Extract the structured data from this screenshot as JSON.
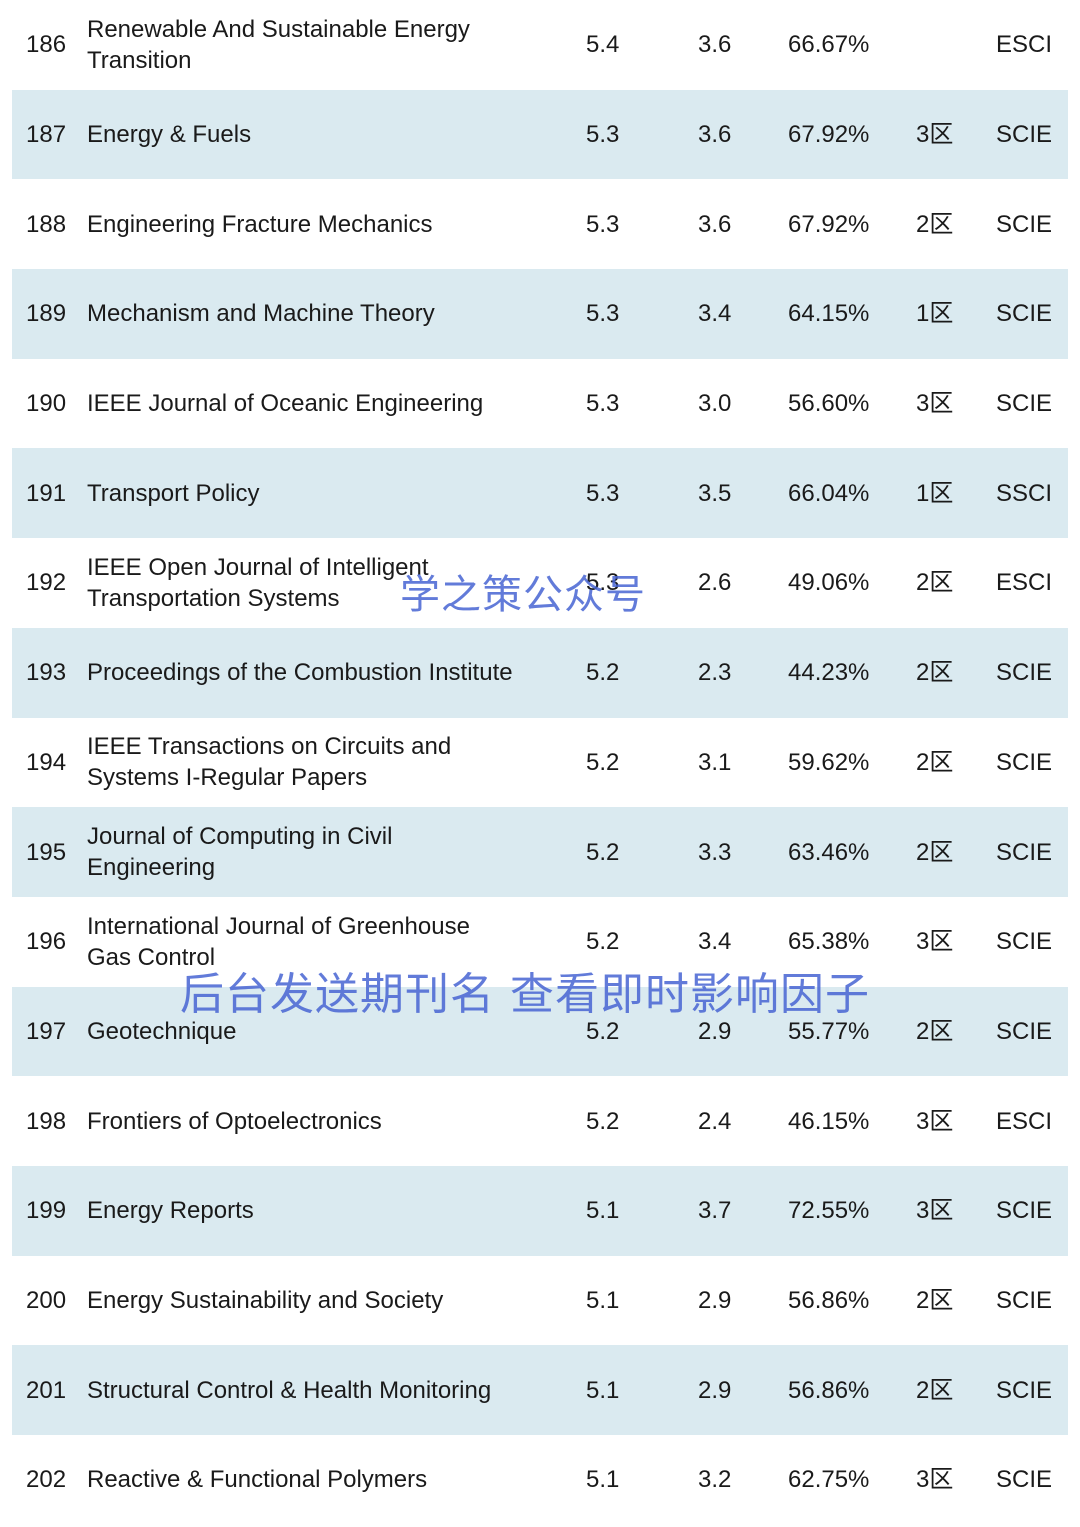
{
  "rows": [
    {
      "rank": "186",
      "title": [
        "Renewable And Sustainable Energy",
        "Transition"
      ],
      "if": "5.4",
      "cite": "3.6",
      "pct": "66.67%",
      "zone": "",
      "index": "ESCI"
    },
    {
      "rank": "187",
      "title": [
        "Energy & Fuels"
      ],
      "if": "5.3",
      "cite": "3.6",
      "pct": "67.92%",
      "zone": "3区",
      "index": "SCIE"
    },
    {
      "rank": "188",
      "title": [
        "Engineering Fracture Mechanics"
      ],
      "if": "5.3",
      "cite": "3.6",
      "pct": "67.92%",
      "zone": "2区",
      "index": "SCIE"
    },
    {
      "rank": "189",
      "title": [
        "Mechanism and Machine Theory"
      ],
      "if": "5.3",
      "cite": "3.4",
      "pct": "64.15%",
      "zone": "1区",
      "index": "SCIE"
    },
    {
      "rank": "190",
      "title": [
        "IEEE Journal of Oceanic Engineering"
      ],
      "if": "5.3",
      "cite": "3.0",
      "pct": "56.60%",
      "zone": "3区",
      "index": "SCIE"
    },
    {
      "rank": "191",
      "title": [
        "Transport Policy"
      ],
      "if": "5.3",
      "cite": "3.5",
      "pct": "66.04%",
      "zone": "1区",
      "index": "SSCI"
    },
    {
      "rank": "192",
      "title": [
        "IEEE Open Journal of Intelligent",
        "Transportation Systems"
      ],
      "if": "5.3",
      "cite": "2.6",
      "pct": "49.06%",
      "zone": "2区",
      "index": "ESCI"
    },
    {
      "rank": "193",
      "title": [
        "Proceedings of the Combustion Institute"
      ],
      "if": "5.2",
      "cite": "2.3",
      "pct": "44.23%",
      "zone": "2区",
      "index": "SCIE"
    },
    {
      "rank": "194",
      "title": [
        "IEEE Transactions on Circuits and",
        "Systems I-Regular Papers"
      ],
      "if": "5.2",
      "cite": "3.1",
      "pct": "59.62%",
      "zone": "2区",
      "index": "SCIE"
    },
    {
      "rank": "195",
      "title": [
        "Journal of Computing in Civil",
        "Engineering"
      ],
      "if": "5.2",
      "cite": "3.3",
      "pct": "63.46%",
      "zone": "2区",
      "index": "SCIE"
    },
    {
      "rank": "196",
      "title": [
        "International Journal of Greenhouse",
        "Gas Control"
      ],
      "if": "5.2",
      "cite": "3.4",
      "pct": "65.38%",
      "zone": "3区",
      "index": "SCIE"
    },
    {
      "rank": "197",
      "title": [
        "Geotechnique"
      ],
      "if": "5.2",
      "cite": "2.9",
      "pct": "55.77%",
      "zone": "2区",
      "index": "SCIE"
    },
    {
      "rank": "198",
      "title": [
        "Frontiers of Optoelectronics"
      ],
      "if": "5.2",
      "cite": "2.4",
      "pct": "46.15%",
      "zone": "3区",
      "index": "ESCI"
    },
    {
      "rank": "199",
      "title": [
        "Energy Reports"
      ],
      "if": "5.1",
      "cite": "3.7",
      "pct": "72.55%",
      "zone": "3区",
      "index": "SCIE"
    },
    {
      "rank": "200",
      "title": [
        "Energy Sustainability and Society"
      ],
      "if": "5.1",
      "cite": "2.9",
      "pct": "56.86%",
      "zone": "2区",
      "index": "SCIE"
    },
    {
      "rank": "201",
      "title": [
        "Structural Control & Health Monitoring"
      ],
      "if": "5.1",
      "cite": "2.9",
      "pct": "56.86%",
      "zone": "2区",
      "index": "SCIE"
    },
    {
      "rank": "202",
      "title": [
        "Reactive & Functional Polymers"
      ],
      "if": "5.1",
      "cite": "3.2",
      "pct": "62.75%",
      "zone": "3区",
      "index": "SCIE"
    }
  ],
  "watermarks": {
    "top": "学之策公众号",
    "bottom": "后台发送期刊名 查看即时影响因子"
  },
  "colors": {
    "shaded_row": "#daeaf0",
    "watermark": "#4664d2"
  }
}
